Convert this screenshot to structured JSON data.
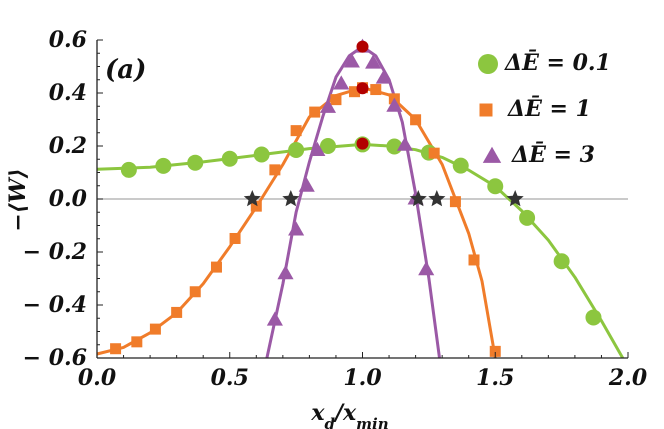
{
  "chart_data": {
    "type": "scatter",
    "panel_label": "(a)",
    "xlabel": "x_d/x_min",
    "ylabel": "−⟨W⟩",
    "xlim": [
      0.0,
      2.0
    ],
    "ylim": [
      -0.6,
      0.6
    ],
    "x_ticks": [
      {
        "value": 0.0,
        "label": "0.0"
      },
      {
        "value": 0.5,
        "label": "0.5"
      },
      {
        "value": 1.0,
        "label": "1.0"
      },
      {
        "value": 1.5,
        "label": "1.5"
      },
      {
        "value": 2.0,
        "label": "2.0"
      }
    ],
    "y_ticks": [
      {
        "value": 0.6,
        "label": "0.6"
      },
      {
        "value": 0.4,
        "label": "0.4"
      },
      {
        "value": 0.2,
        "label": "0.2"
      },
      {
        "value": 0.0,
        "label": "0.0"
      },
      {
        "value": -0.2,
        "label": "− 0.2"
      },
      {
        "value": -0.4,
        "label": "− 0.4"
      },
      {
        "value": -0.6,
        "label": "− 0.6"
      }
    ],
    "grid": false,
    "zero_line": true,
    "legend_position": "top-right",
    "series": [
      {
        "name": "ΔĒ = 0.1",
        "color": "#8cc63f",
        "marker": "circle",
        "points": [
          [
            0.12,
            0.11
          ],
          [
            0.25,
            0.125
          ],
          [
            0.37,
            0.137
          ],
          [
            0.5,
            0.152
          ],
          [
            0.62,
            0.168
          ],
          [
            0.75,
            0.185
          ],
          [
            0.87,
            0.2
          ],
          [
            1.0,
            0.206
          ],
          [
            1.12,
            0.198
          ],
          [
            1.25,
            0.175
          ],
          [
            1.37,
            0.126
          ],
          [
            1.5,
            0.048
          ],
          [
            1.62,
            -0.071
          ],
          [
            1.75,
            -0.235
          ],
          [
            1.87,
            -0.447
          ]
        ],
        "curve": [
          [
            0.0,
            0.112
          ],
          [
            0.2,
            0.12
          ],
          [
            0.4,
            0.14
          ],
          [
            0.6,
            0.165
          ],
          [
            0.8,
            0.19
          ],
          [
            1.0,
            0.206
          ],
          [
            1.1,
            0.2
          ],
          [
            1.2,
            0.186
          ],
          [
            1.3,
            0.157
          ],
          [
            1.4,
            0.109
          ],
          [
            1.5,
            0.048
          ],
          [
            1.6,
            -0.045
          ],
          [
            1.7,
            -0.155
          ],
          [
            1.8,
            -0.295
          ],
          [
            1.9,
            -0.46
          ],
          [
            1.98,
            -0.6
          ]
        ]
      },
      {
        "name": "ΔĒ = 1",
        "color": "#f07c2a",
        "marker": "square",
        "points": [
          [
            0.07,
            -0.565
          ],
          [
            0.15,
            -0.539
          ],
          [
            0.22,
            -0.491
          ],
          [
            0.3,
            -0.428
          ],
          [
            0.37,
            -0.35
          ],
          [
            0.45,
            -0.257
          ],
          [
            0.52,
            -0.149
          ],
          [
            0.6,
            -0.027
          ],
          [
            0.67,
            0.11
          ],
          [
            0.75,
            0.258
          ],
          [
            0.82,
            0.328
          ],
          [
            0.9,
            0.375
          ],
          [
            0.97,
            0.405
          ],
          [
            1.0,
            0.42
          ],
          [
            1.05,
            0.413
          ],
          [
            1.12,
            0.378
          ],
          [
            1.2,
            0.299
          ],
          [
            1.27,
            0.173
          ],
          [
            1.35,
            -0.01
          ],
          [
            1.42,
            -0.23
          ],
          [
            1.5,
            -0.575
          ]
        ],
        "curve": [
          [
            0.0,
            -0.585
          ],
          [
            0.1,
            -0.56
          ],
          [
            0.2,
            -0.505
          ],
          [
            0.3,
            -0.43
          ],
          [
            0.4,
            -0.32
          ],
          [
            0.5,
            -0.18
          ],
          [
            0.6,
            -0.03
          ],
          [
            0.7,
            0.13
          ],
          [
            0.8,
            0.31
          ],
          [
            0.9,
            0.39
          ],
          [
            1.0,
            0.42
          ],
          [
            1.1,
            0.393
          ],
          [
            1.2,
            0.3
          ],
          [
            1.3,
            0.13
          ],
          [
            1.4,
            -0.13
          ],
          [
            1.45,
            -0.31
          ],
          [
            1.5,
            -0.6
          ]
        ]
      },
      {
        "name": "ΔĒ = 3",
        "color": "#9b59a6",
        "marker": "triangle",
        "points": [
          [
            0.67,
            -0.455
          ],
          [
            0.71,
            -0.28
          ],
          [
            0.75,
            -0.115
          ],
          [
            0.79,
            0.05
          ],
          [
            0.83,
            0.185
          ],
          [
            0.87,
            0.348
          ],
          [
            0.92,
            0.436
          ],
          [
            0.96,
            0.519
          ],
          [
            1.0,
            0.575
          ],
          [
            1.04,
            0.515
          ],
          [
            1.08,
            0.458
          ],
          [
            1.12,
            0.352
          ],
          [
            1.16,
            0.205
          ],
          [
            1.2,
            0.002
          ],
          [
            1.24,
            -0.265
          ]
        ],
        "curve": [
          [
            0.64,
            -0.6
          ],
          [
            0.7,
            -0.32
          ],
          [
            0.75,
            -0.05
          ],
          [
            0.8,
            0.14
          ],
          [
            0.85,
            0.31
          ],
          [
            0.9,
            0.46
          ],
          [
            0.95,
            0.54
          ],
          [
            1.0,
            0.575
          ],
          [
            1.05,
            0.54
          ],
          [
            1.1,
            0.45
          ],
          [
            1.15,
            0.29
          ],
          [
            1.2,
            0.02
          ],
          [
            1.25,
            -0.3
          ],
          [
            1.29,
            -0.6
          ]
        ]
      }
    ],
    "maxima": {
      "color": "#b20000",
      "points": [
        [
          1.0,
          0.575
        ],
        [
          1.0,
          0.418
        ],
        [
          1.0,
          0.209
        ]
      ]
    },
    "zero_crossings": {
      "color": "#333333",
      "points": [
        [
          0.585,
          0.0
        ],
        [
          0.73,
          0.0
        ],
        [
          1.21,
          0.0
        ],
        [
          1.28,
          0.0
        ],
        [
          1.575,
          0.0
        ]
      ]
    }
  }
}
